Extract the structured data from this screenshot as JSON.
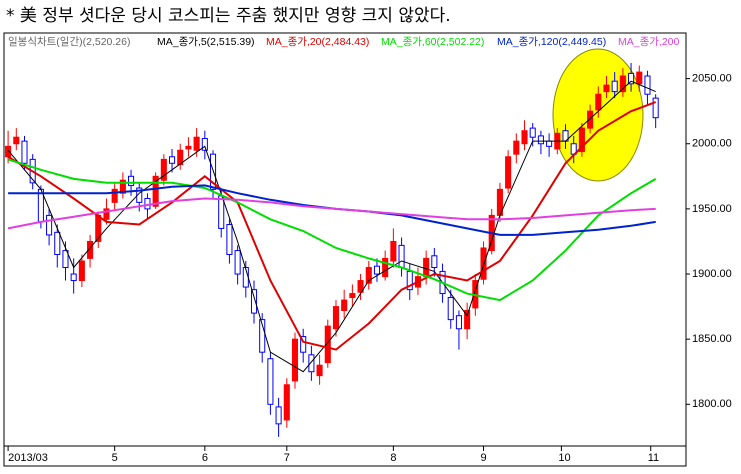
{
  "chart_data": {
    "type": "candlestick",
    "title": "* 美 정부 셧다운 당시 코스피는 주춤 했지만 영향 크지 않았다.",
    "xlim": [
      -0.5,
      82.7
    ],
    "xticks": [
      {
        "value": 0,
        "label": "2013/03"
      },
      {
        "value": 13,
        "label": "5"
      },
      {
        "value": 24,
        "label": "6"
      },
      {
        "value": 34,
        "label": "7"
      },
      {
        "value": 47,
        "label": "8"
      },
      {
        "value": 58,
        "label": "9"
      },
      {
        "value": 67.5,
        "label": "10"
      },
      {
        "value": 78.4,
        "label": "11"
      }
    ],
    "ylim": [
      1768,
      2085
    ],
    "yticks": [
      {
        "value": 1800,
        "label": "1800.00"
      },
      {
        "value": 1850,
        "label": "1850.00"
      },
      {
        "value": 1900,
        "label": "1900.00"
      },
      {
        "value": 1950,
        "label": "1950.00"
      },
      {
        "value": 2000,
        "label": "2000.00"
      },
      {
        "value": 2050,
        "label": "2050.00"
      }
    ],
    "up_color": "#ff0000",
    "down_color": "#0000ff",
    "candles": {
      "name": "일봉식차트(일간)(2,520.26)",
      "open": [
        1990,
        2000,
        2002,
        1988,
        1965,
        1945,
        1932,
        1918,
        1900,
        1895,
        1912,
        1925,
        1942,
        1955,
        1962,
        1975,
        1966,
        1958,
        1952,
        1972,
        1990,
        1984,
        1996,
        1995,
        2004,
        1992,
        1960,
        1938,
        1918,
        1905,
        1888,
        1865,
        1835,
        1798,
        1788,
        1818,
        1852,
        1838,
        1822,
        1832,
        1858,
        1872,
        1882,
        1886,
        1893,
        1906,
        1898,
        1910,
        1922,
        1902,
        1890,
        1898,
        1914,
        1902,
        1882,
        1868,
        1858,
        1874,
        1896,
        1918,
        1945,
        1966,
        1992,
        2000,
        2012,
        2006,
        2002,
        1996,
        2010,
        2000,
        1994,
        2012,
        2026,
        2040,
        2048,
        2040,
        2054,
        2046,
        2052,
        2035
      ],
      "high": [
        2010,
        2012,
        2006,
        1992,
        1968,
        1950,
        1938,
        1925,
        1912,
        1915,
        1930,
        1948,
        1958,
        1970,
        1978,
        1980,
        1970,
        1962,
        1978,
        1992,
        1996,
        2000,
        2005,
        2012,
        2010,
        1995,
        1965,
        1942,
        1922,
        1910,
        1895,
        1870,
        1840,
        1805,
        1820,
        1855,
        1858,
        1845,
        1838,
        1865,
        1880,
        1888,
        1892,
        1900,
        1910,
        1912,
        1918,
        1935,
        1928,
        1908,
        1905,
        1918,
        1920,
        1908,
        1888,
        1872,
        1878,
        1900,
        1925,
        1950,
        1970,
        1995,
        2008,
        2018,
        2016,
        2010,
        2008,
        2012,
        2015,
        2006,
        2016,
        2030,
        2044,
        2052,
        2055,
        2058,
        2062,
        2060,
        2056,
        2038
      ],
      "low": [
        1985,
        1995,
        1980,
        1965,
        1935,
        1922,
        1905,
        1895,
        1885,
        1890,
        1905,
        1920,
        1938,
        1948,
        1958,
        1960,
        1948,
        1942,
        1950,
        1968,
        1978,
        1980,
        1990,
        1990,
        1988,
        1958,
        1928,
        1908,
        1892,
        1882,
        1862,
        1832,
        1792,
        1775,
        1782,
        1812,
        1832,
        1818,
        1815,
        1828,
        1852,
        1866,
        1875,
        1880,
        1888,
        1894,
        1895,
        1905,
        1898,
        1880,
        1884,
        1892,
        1898,
        1878,
        1858,
        1842,
        1850,
        1868,
        1892,
        1915,
        1940,
        1962,
        1985,
        1995,
        1998,
        1992,
        1990,
        1992,
        1996,
        1985,
        1990,
        2008,
        2020,
        2035,
        2035,
        2036,
        2040,
        2040,
        2030,
        2012
      ],
      "close": [
        1998,
        2005,
        1985,
        1970,
        1940,
        1930,
        1915,
        1905,
        1895,
        1910,
        1925,
        1945,
        1950,
        1965,
        1972,
        1968,
        1955,
        1950,
        1975,
        1988,
        1985,
        1995,
        1998,
        2005,
        1995,
        1965,
        1935,
        1915,
        1900,
        1890,
        1870,
        1840,
        1800,
        1785,
        1815,
        1850,
        1840,
        1825,
        1830,
        1860,
        1875,
        1880,
        1885,
        1895,
        1905,
        1900,
        1912,
        1925,
        1905,
        1888,
        1898,
        1912,
        1905,
        1885,
        1865,
        1858,
        1872,
        1895,
        1920,
        1945,
        1965,
        1990,
        2002,
        2010,
        2005,
        2000,
        1998,
        2008,
        2002,
        1992,
        2012,
        2025,
        2038,
        2045,
        2040,
        2052,
        2046,
        2055,
        2038,
        2020
      ]
    },
    "series": [
      {
        "name": "MA_종가,5(2,515.39)",
        "color": "#000000",
        "x": [
          0,
          4,
          8,
          12,
          16,
          20,
          24,
          28,
          32,
          36,
          40,
          44,
          48,
          52,
          56,
          60,
          64,
          68,
          72,
          76,
          79
        ],
        "values": [
          1995,
          1965,
          1905,
          1935,
          1962,
          1980,
          1998,
          1925,
          1840,
          1825,
          1855,
          1895,
          1910,
          1902,
          1868,
          1945,
          2002,
          2002,
          2025,
          2048,
          2040
        ]
      },
      {
        "name": "MA_종가,20(2,484.43)",
        "color": "#e00000",
        "x": [
          0,
          4,
          8,
          12,
          16,
          20,
          24,
          28,
          32,
          36,
          40,
          44,
          48,
          52,
          56,
          60,
          64,
          68,
          72,
          76,
          79
        ],
        "values": [
          1990,
          1975,
          1958,
          1940,
          1938,
          1955,
          1975,
          1955,
          1895,
          1848,
          1842,
          1862,
          1888,
          1900,
          1895,
          1910,
          1945,
          1985,
          2010,
          2025,
          2032
        ]
      },
      {
        "name": "MA_종가,60(2,502.22)",
        "color": "#00dd00",
        "x": [
          0,
          4,
          8,
          12,
          16,
          20,
          24,
          28,
          32,
          36,
          40,
          44,
          48,
          52,
          56,
          60,
          64,
          68,
          72,
          76,
          79
        ],
        "values": [
          1988,
          1980,
          1973,
          1970,
          1970,
          1970,
          1966,
          1955,
          1942,
          1933,
          1920,
          1912,
          1905,
          1896,
          1885,
          1880,
          1895,
          1918,
          1945,
          1962,
          1973
        ]
      },
      {
        "name": "MA_종가,120(2,449.45)",
        "color": "#0022cc",
        "x": [
          0,
          4,
          8,
          12,
          16,
          20,
          24,
          28,
          32,
          36,
          40,
          44,
          48,
          52,
          56,
          60,
          64,
          68,
          72,
          76,
          79
        ],
        "values": [
          1962,
          1962,
          1962,
          1962,
          1964,
          1967,
          1968,
          1962,
          1957,
          1953,
          1950,
          1948,
          1945,
          1940,
          1935,
          1930,
          1930,
          1932,
          1934,
          1937,
          1940
        ]
      },
      {
        "name": "MA_종가,200",
        "color": "#e040e0",
        "x": [
          0,
          4,
          8,
          12,
          16,
          20,
          24,
          28,
          32,
          36,
          40,
          44,
          48,
          52,
          56,
          60,
          64,
          68,
          72,
          76,
          79
        ],
        "values": [
          1935,
          1940,
          1944,
          1948,
          1952,
          1956,
          1958,
          1957,
          1955,
          1952,
          1950,
          1948,
          1946,
          1944,
          1942,
          1942,
          1943,
          1945,
          1947,
          1949,
          1950
        ]
      }
    ]
  }
}
